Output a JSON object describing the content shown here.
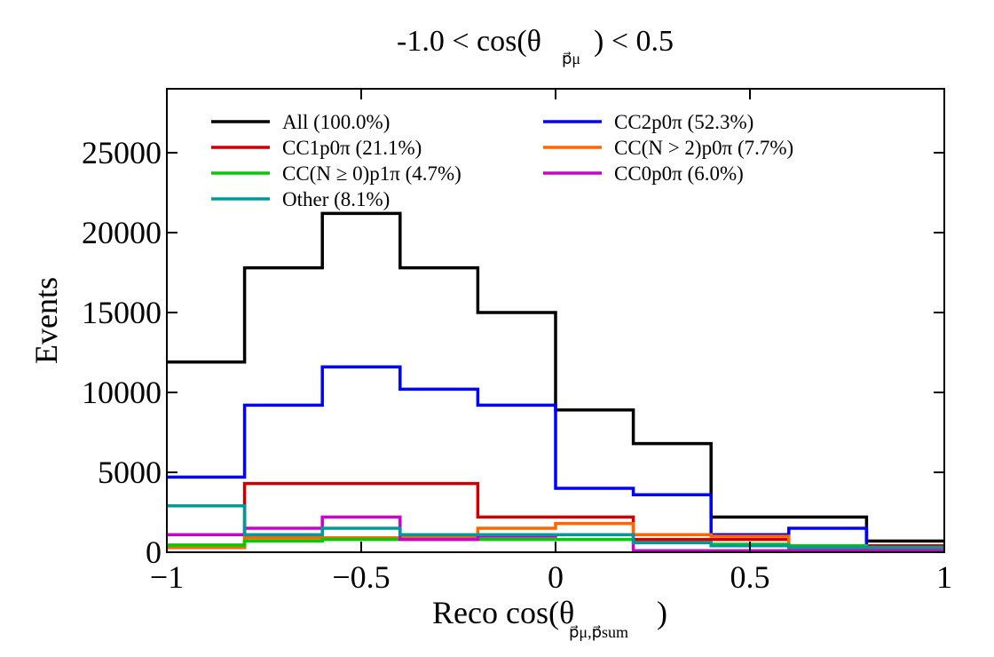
{
  "chart_data": {
    "type": "line",
    "step": true,
    "title": {
      "main": "-1.0 < cos(θ",
      "sub": "p⃗μ",
      "tail": ") < 0.5"
    },
    "xlabel": {
      "main": "Reco cos(θ",
      "sub": "p⃗μ,p⃗sum",
      "tail": ")"
    },
    "ylabel": "Events",
    "xlim": [
      -1,
      1
    ],
    "ylim": [
      0,
      29000
    ],
    "xticks": [
      -1,
      -0.5,
      0,
      0.5,
      1
    ],
    "xtick_labels": [
      "−1",
      "−0.5",
      "0",
      "0.5",
      "1"
    ],
    "yticks": [
      0,
      5000,
      10000,
      15000,
      20000,
      25000
    ],
    "ytick_labels": [
      "0",
      "5000",
      "10000",
      "15000",
      "20000",
      "25000"
    ],
    "bin_edges": [
      -1,
      -0.8,
      -0.6,
      -0.4,
      -0.2,
      0,
      0.2,
      0.4,
      0.6,
      0.8,
      1
    ],
    "legend_position": "top",
    "series": [
      {
        "name": "All (100.0%)",
        "color": "#000000",
        "values": [
          11900,
          17800,
          21200,
          17800,
          15000,
          8900,
          6800,
          2200,
          2200,
          700
        ]
      },
      {
        "name": "CC2p0π (52.3%)",
        "color": "#0000ff",
        "values": [
          4700,
          9200,
          11600,
          10200,
          9200,
          4000,
          3600,
          1100,
          1500,
          350
        ]
      },
      {
        "name": "CC1p0π (21.1%)",
        "color": "#cc0000",
        "values": [
          300,
          4300,
          4300,
          4300,
          2200,
          2200,
          800,
          800,
          300,
          400
        ]
      },
      {
        "name": "CC(N > 2)p0π (7.7%)",
        "color": "#ff6600",
        "values": [
          300,
          900,
          900,
          900,
          1500,
          1800,
          1100,
          1000,
          300,
          200
        ]
      },
      {
        "name": "CC(N ≥ 0)p1π (4.7%)",
        "color": "#00cc00",
        "values": [
          450,
          700,
          800,
          800,
          800,
          800,
          600,
          500,
          400,
          300
        ]
      },
      {
        "name": "CC0p0π (6.0%)",
        "color": "#cc00cc",
        "values": [
          1100,
          1500,
          2200,
          800,
          1000,
          1100,
          100,
          100,
          100,
          100
        ]
      },
      {
        "name": "Other (8.1%)",
        "color": "#009999",
        "values": [
          2900,
          1100,
          1500,
          1100,
          1100,
          1100,
          600,
          400,
          300,
          300
        ]
      }
    ],
    "legend_order": [
      0,
      1,
      2,
      6,
      3,
      4,
      5
    ],
    "grid": false
  }
}
